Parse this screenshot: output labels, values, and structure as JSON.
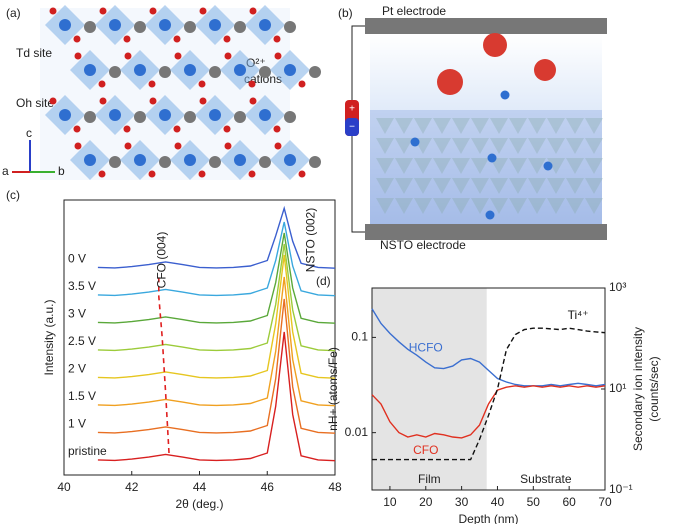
{
  "panel_a": {
    "label": "(a)",
    "td_site": "Td site",
    "oh_site": "Oh site",
    "o_label": "O²⁺",
    "o_label2": "cations",
    "axis_a": "a",
    "axis_b": "b",
    "axis_c": "c"
  },
  "panel_b": {
    "label": "(b)",
    "top_electrode": "Pt electrode",
    "bottom_electrode": "NSTO electrode",
    "plus": "+",
    "minus": "−"
  },
  "chart_data": [
    {
      "type": "line",
      "label": "(c)",
      "xlabel": "2θ (deg.)",
      "ylabel": "Intensity (a.u.)",
      "x": [
        41,
        41.5,
        42,
        42.5,
        43,
        43.5,
        44,
        44.5,
        45,
        45.5,
        46,
        46.25,
        46.5,
        46.75,
        47,
        47.5,
        48
      ],
      "xlim": [
        40,
        48
      ],
      "xticks": [
        40,
        42,
        44,
        46,
        48
      ],
      "ylim": [
        0,
        100
      ],
      "annotations": [
        "CFO (004)",
        "NSTO (002)"
      ],
      "peak_line": {
        "x": [
          43.1,
          43.0,
          42.9,
          42.8,
          42.8
        ],
        "y": [
          8,
          30,
          50,
          65,
          72
        ],
        "color": "#e02020"
      },
      "series": [
        {
          "name": "0 V",
          "color": "#3b5fcf",
          "values": [
            75.5,
            75.3,
            75.8,
            76.5,
            77.5,
            76.5,
            75.5,
            75.3,
            75.5,
            76,
            78,
            87,
            97,
            85,
            77,
            75.5,
            75.2
          ]
        },
        {
          "name": "3.5 V",
          "color": "#3aa8de",
          "values": [
            65.5,
            65.3,
            65.8,
            66.5,
            67.5,
            66.5,
            65.5,
            65.3,
            65.5,
            66,
            68,
            78,
            92,
            76,
            67,
            65.5,
            65.2
          ]
        },
        {
          "name": "3 V",
          "color": "#5aa83a",
          "values": [
            55.5,
            55.3,
            55.8,
            56.5,
            57.5,
            56.5,
            55.5,
            55.3,
            55.5,
            56,
            58,
            70,
            88,
            68,
            57,
            55.5,
            55.2
          ]
        },
        {
          "name": "2.5 V",
          "color": "#9ccb3a",
          "values": [
            45.5,
            45.3,
            45.8,
            46.5,
            47.5,
            46.5,
            45.5,
            45.3,
            45.5,
            46,
            48,
            62,
            84,
            60,
            47,
            45.5,
            45.2
          ]
        },
        {
          "name": "2 V",
          "color": "#e6c620",
          "values": [
            35.5,
            35.3,
            35.8,
            36.5,
            37.5,
            36.5,
            35.5,
            35.3,
            35.5,
            36,
            38,
            55,
            80,
            52,
            37,
            35.5,
            35.2
          ]
        },
        {
          "name": "1.5 V",
          "color": "#f0a020",
          "values": [
            25.5,
            25.3,
            25.8,
            26.5,
            27.5,
            26.5,
            25.5,
            25.3,
            25.5,
            26,
            28,
            45,
            72,
            42,
            27,
            25.5,
            25.2
          ]
        },
        {
          "name": "1 V",
          "color": "#e86f22",
          "values": [
            15.5,
            15.3,
            15.8,
            16.5,
            17.5,
            16.5,
            15.5,
            15.3,
            15.5,
            16,
            18,
            35,
            64,
            32,
            17,
            15.5,
            15.2
          ]
        },
        {
          "name": "pristine",
          "color": "#d82020",
          "values": [
            5.5,
            5.3,
            5.8,
            6.5,
            7.5,
            6.5,
            5.5,
            5.3,
            5.5,
            6,
            8,
            25,
            52,
            22,
            7,
            5.5,
            5.2
          ]
        }
      ]
    },
    {
      "type": "line",
      "label": "(d)",
      "xlabel": "Depth (nm)",
      "ylabel": "nH+ (atoms/Fe)",
      "y2label": [
        "Secondary ion intensity",
        "(counts/sec)"
      ],
      "x": [
        5,
        7.5,
        10,
        12.5,
        15,
        17.5,
        20,
        22.5,
        25,
        27.5,
        30,
        32.5,
        35,
        37.5,
        40,
        42.5,
        45,
        47.5,
        50,
        52.5,
        55,
        57.5,
        60,
        62.5,
        65,
        67.5,
        70
      ],
      "xlim": [
        5,
        70
      ],
      "xticks": [
        10,
        20,
        30,
        40,
        50,
        60,
        70
      ],
      "ylim": [
        0.0025,
        0.33
      ],
      "yticks": [
        0.01,
        0.1
      ],
      "yscale": "log",
      "y2lim": [
        0.1,
        1000
      ],
      "y2ticks": [
        {
          "value": 0.1,
          "label": "10⁻¹"
        },
        {
          "value": 10,
          "label": "10¹"
        },
        {
          "value": 1000,
          "label": "10³"
        }
      ],
      "y2scale": "log",
      "shaded": [
        5,
        37
      ],
      "shaded_color": "#e4e4e4",
      "regions": [
        "Film",
        "Substrate"
      ],
      "series": [
        {
          "name": "HCFO",
          "color": "#3b6fd0",
          "values": [
            0.2,
            0.14,
            0.11,
            0.09,
            0.075,
            0.065,
            0.055,
            0.048,
            0.047,
            0.05,
            0.058,
            0.06,
            0.055,
            0.045,
            0.037,
            0.034,
            0.032,
            0.031,
            0.031,
            0.031,
            0.032,
            0.031,
            0.032,
            0.033,
            0.032,
            0.031,
            0.032
          ]
        },
        {
          "name": "CFO",
          "color": "#e03020",
          "values": [
            0.025,
            0.02,
            0.013,
            0.01,
            0.009,
            0.0095,
            0.009,
            0.0098,
            0.0095,
            0.009,
            0.0088,
            0.0095,
            0.012,
            0.02,
            0.028,
            0.03,
            0.031,
            0.03,
            0.031,
            0.03,
            0.031,
            0.03,
            0.031,
            0.03,
            0.031,
            0.03,
            0.031
          ]
        },
        {
          "name": "Ti⁴⁺",
          "color": "#111111",
          "axis": "y2",
          "dashed": true,
          "values": [
            0.4,
            0.4,
            0.4,
            0.4,
            0.4,
            0.4,
            0.4,
            0.4,
            0.4,
            0.4,
            0.4,
            0.4,
            1,
            3,
            10,
            60,
            120,
            150,
            160,
            160,
            155,
            150,
            160,
            150,
            140,
            135,
            130
          ]
        }
      ]
    }
  ]
}
